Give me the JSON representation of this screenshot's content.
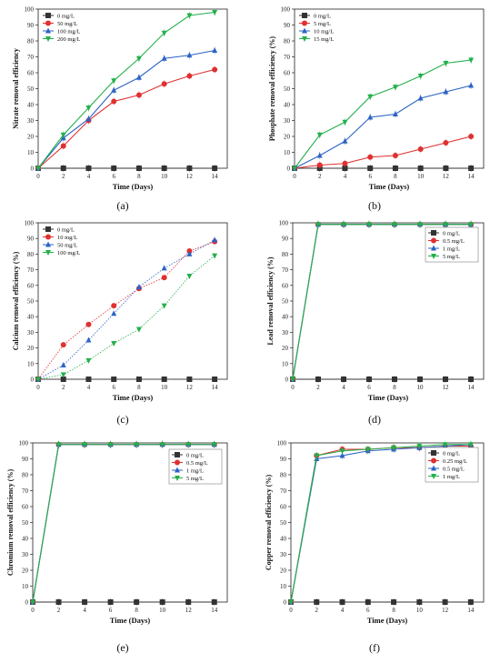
{
  "chart_data": [
    {
      "type": "line",
      "panel_label": "(a)",
      "xlabel": "Time (Days)",
      "ylabel": "Nitrate removal efficiency",
      "xlim": [
        0,
        15
      ],
      "ylim": [
        0,
        100
      ],
      "xticks": [
        0,
        2,
        4,
        6,
        8,
        10,
        12,
        14
      ],
      "yticks": [
        0,
        10,
        20,
        30,
        40,
        50,
        60,
        70,
        80,
        90,
        100
      ],
      "legend_position": "top-left",
      "grid": false,
      "x": [
        0,
        2,
        4,
        6,
        8,
        10,
        12,
        14
      ],
      "series": [
        {
          "name": "0 mg/L",
          "color": "#333333",
          "marker": "square",
          "values": [
            0,
            0,
            0,
            0,
            0,
            0,
            0,
            0
          ]
        },
        {
          "name": "50 mg/L",
          "color": "#e03030",
          "marker": "circle",
          "values": [
            0,
            14,
            30,
            42,
            46,
            53,
            58,
            62
          ]
        },
        {
          "name": "100 mg/L",
          "color": "#2c63c4",
          "marker": "triangle-up",
          "values": [
            0,
            19,
            31,
            49,
            57,
            69,
            71,
            74
          ]
        },
        {
          "name": "200 mg/L",
          "color": "#22b04b",
          "marker": "triangle-down",
          "values": [
            0,
            21,
            38,
            55,
            69,
            85,
            96,
            98
          ]
        }
      ]
    },
    {
      "type": "line",
      "panel_label": "(b)",
      "xlabel": "Time (Days)",
      "ylabel": "Phosphate removal efficiency (%)",
      "xlim": [
        0,
        15
      ],
      "ylim": [
        0,
        100
      ],
      "xticks": [
        0,
        2,
        4,
        6,
        8,
        10,
        12,
        14
      ],
      "yticks": [
        0,
        10,
        20,
        30,
        40,
        50,
        60,
        70,
        80,
        90,
        100
      ],
      "legend_position": "top-left",
      "grid": false,
      "x": [
        0,
        2,
        4,
        6,
        8,
        10,
        12,
        14
      ],
      "series": [
        {
          "name": "0 mg/L",
          "color": "#333333",
          "marker": "square",
          "values": [
            0,
            0,
            0,
            0,
            0,
            0,
            0,
            0
          ]
        },
        {
          "name": "5 mg/L",
          "color": "#e03030",
          "marker": "circle",
          "values": [
            0,
            2,
            3,
            7,
            8,
            12,
            16,
            20
          ]
        },
        {
          "name": "10 mg/L",
          "color": "#2c63c4",
          "marker": "triangle-up",
          "values": [
            0,
            8,
            17,
            32,
            34,
            44,
            48,
            52
          ]
        },
        {
          "name": "15 mg/L",
          "color": "#22b04b",
          "marker": "triangle-down",
          "values": [
            0,
            21,
            29,
            45,
            51,
            58,
            66,
            68
          ]
        }
      ]
    },
    {
      "type": "line",
      "panel_label": "(c)",
      "xlabel": "Time (Days)",
      "ylabel": "Calcium removal efficiency (%)",
      "xlim": [
        0,
        15
      ],
      "ylim": [
        0,
        100
      ],
      "xticks": [
        0,
        2,
        4,
        6,
        8,
        10,
        12,
        14
      ],
      "yticks": [
        0,
        10,
        20,
        30,
        40,
        50,
        60,
        70,
        80,
        90,
        100
      ],
      "legend_position": "top-left",
      "grid": false,
      "x": [
        0,
        2,
        4,
        6,
        8,
        10,
        12,
        14
      ],
      "series": [
        {
          "name": "0 mg/L",
          "color": "#333333",
          "marker": "square",
          "values": [
            0,
            0,
            0,
            0,
            0,
            0,
            0,
            0
          ]
        },
        {
          "name": "10 mg/L",
          "color": "#e03030",
          "marker": "circle",
          "values": [
            0,
            22,
            35,
            47,
            58,
            65,
            82,
            88
          ]
        },
        {
          "name": "50 mg/L",
          "color": "#2c63c4",
          "marker": "triangle-up",
          "values": [
            0,
            9,
            25,
            42,
            59,
            71,
            80,
            89
          ]
        },
        {
          "name": "100 mg/L",
          "color": "#22b04b",
          "marker": "triangle-down",
          "values": [
            0,
            3,
            12,
            23,
            32,
            47,
            66,
            79
          ]
        }
      ]
    },
    {
      "type": "line",
      "panel_label": "(d)",
      "xlabel": "Time (Days)",
      "ylabel": "Lead removal efficiency (%)",
      "xlim": [
        0,
        15
      ],
      "ylim": [
        0,
        100
      ],
      "xticks": [
        0,
        2,
        4,
        6,
        8,
        10,
        12,
        14
      ],
      "yticks": [
        0,
        10,
        20,
        30,
        40,
        50,
        60,
        70,
        80,
        90,
        100
      ],
      "legend_position": "top-right",
      "grid": false,
      "x": [
        0,
        2,
        4,
        6,
        8,
        10,
        12,
        14
      ],
      "series": [
        {
          "name": "0 mg/L",
          "color": "#333333",
          "marker": "square",
          "values": [
            0,
            0,
            0,
            0,
            0,
            0,
            0,
            0
          ]
        },
        {
          "name": "0.5 mg/L",
          "color": "#e03030",
          "marker": "circle",
          "values": [
            0,
            99,
            99,
            99,
            99,
            99,
            99,
            99
          ]
        },
        {
          "name": "1 mg/L",
          "color": "#2c63c4",
          "marker": "triangle-up",
          "values": [
            0,
            99,
            99,
            99,
            99,
            99,
            99,
            99
          ]
        },
        {
          "name": "5 mg/L",
          "color": "#22b04b",
          "marker": "triangle-down",
          "values": [
            0,
            99,
            99,
            99,
            99,
            99,
            99,
            99
          ]
        }
      ]
    },
    {
      "type": "line",
      "panel_label": "(e)",
      "xlabel": "Time (Days)",
      "ylabel": "Chromium removal efficiency (%)",
      "xlim": [
        0,
        15
      ],
      "ylim": [
        0,
        100
      ],
      "xticks": [
        0,
        2,
        4,
        6,
        8,
        10,
        12,
        14
      ],
      "yticks": [
        0,
        10,
        20,
        30,
        40,
        50,
        60,
        70,
        80,
        90,
        100
      ],
      "legend_position": "top-right",
      "grid": false,
      "x": [
        0,
        2,
        4,
        6,
        8,
        10,
        12,
        14
      ],
      "series": [
        {
          "name": "0 mg/L",
          "color": "#333333",
          "marker": "square",
          "values": [
            0,
            0,
            0,
            0,
            0,
            0,
            0,
            0
          ]
        },
        {
          "name": "0.5 mg/L",
          "color": "#e03030",
          "marker": "circle",
          "values": [
            0,
            99,
            99,
            99,
            99,
            99,
            99,
            99
          ]
        },
        {
          "name": "1 mg/L",
          "color": "#2c63c4",
          "marker": "triangle-up",
          "values": [
            0,
            99,
            99,
            99,
            99,
            99,
            99,
            99
          ]
        },
        {
          "name": "5 mg/L",
          "color": "#22b04b",
          "marker": "triangle-down",
          "values": [
            0,
            99,
            99,
            99,
            99,
            99,
            99,
            99
          ]
        }
      ]
    },
    {
      "type": "line",
      "panel_label": "(f)",
      "xlabel": "Time (Days)",
      "ylabel": "Copper removal efficiency (%)",
      "xlim": [
        0,
        15
      ],
      "ylim": [
        0,
        100
      ],
      "xticks": [
        0,
        2,
        4,
        6,
        8,
        10,
        12,
        14
      ],
      "yticks": [
        0,
        10,
        20,
        30,
        40,
        50,
        60,
        70,
        80,
        90,
        100
      ],
      "legend_position": "top-right",
      "grid": false,
      "x": [
        0,
        2,
        4,
        6,
        8,
        10,
        12,
        14
      ],
      "series": [
        {
          "name": "0 mg/L",
          "color": "#333333",
          "marker": "square",
          "values": [
            0,
            0,
            0,
            0,
            0,
            0,
            0,
            0
          ]
        },
        {
          "name": "0.25 mg/L",
          "color": "#e03030",
          "marker": "circle",
          "values": [
            0,
            92,
            96,
            96,
            97,
            97,
            98,
            98
          ]
        },
        {
          "name": "0.5 mg/L",
          "color": "#2c63c4",
          "marker": "triangle-up",
          "values": [
            0,
            90,
            92,
            95,
            96,
            97,
            98,
            99
          ]
        },
        {
          "name": "1 mg/L",
          "color": "#22b04b",
          "marker": "triangle-down",
          "values": [
            0,
            92,
            95,
            96,
            97,
            98,
            99,
            99
          ]
        }
      ]
    }
  ]
}
